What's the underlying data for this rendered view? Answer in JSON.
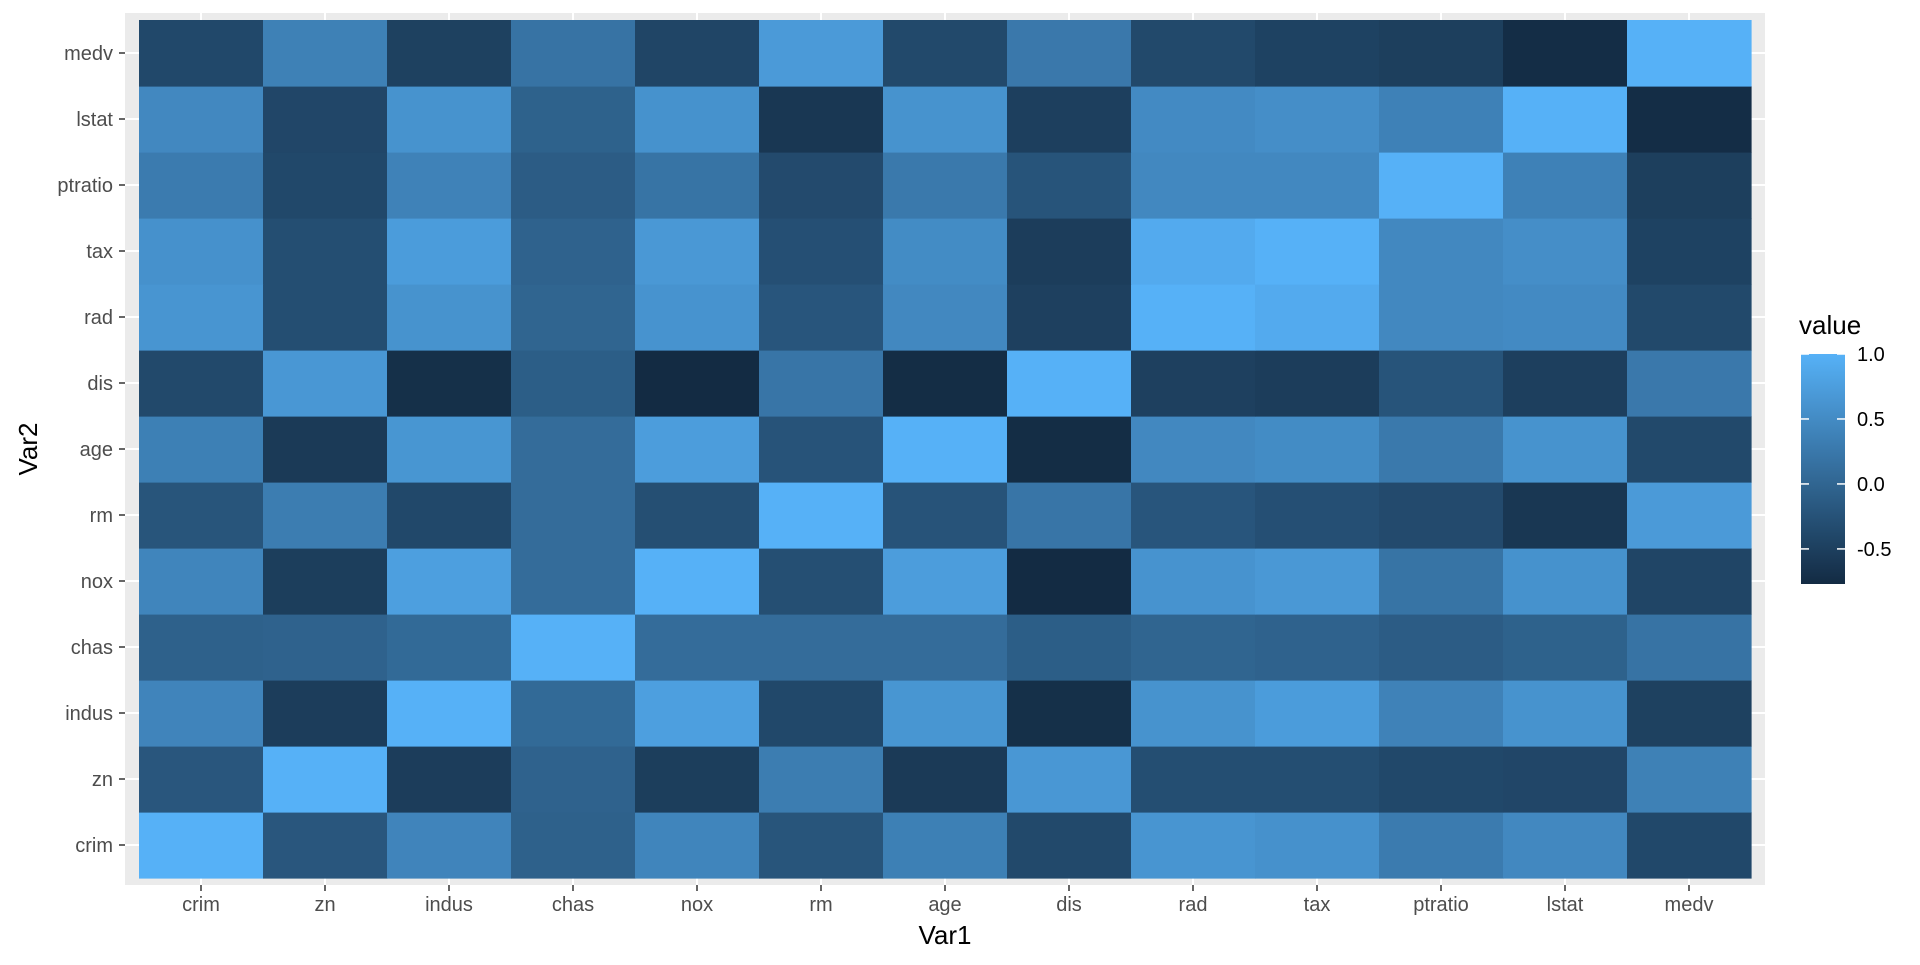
{
  "chart_data": {
    "type": "heatmap",
    "xlabel": "Var1",
    "ylabel": "Var2",
    "x_categories": [
      "crim",
      "zn",
      "indus",
      "chas",
      "nox",
      "rm",
      "age",
      "dis",
      "rad",
      "tax",
      "ptratio",
      "lstat",
      "medv"
    ],
    "y_categories": [
      "crim",
      "zn",
      "indus",
      "chas",
      "nox",
      "rm",
      "age",
      "dis",
      "rad",
      "tax",
      "ptratio",
      "lstat",
      "medv"
    ],
    "values": [
      [
        1.0,
        -0.2,
        0.41,
        -0.06,
        0.42,
        -0.22,
        0.35,
        -0.38,
        0.63,
        0.58,
        0.29,
        0.46,
        -0.39
      ],
      [
        -0.2,
        1.0,
        -0.53,
        -0.04,
        -0.52,
        0.31,
        -0.57,
        0.66,
        -0.31,
        -0.31,
        -0.39,
        -0.41,
        0.36
      ],
      [
        0.41,
        -0.53,
        1.0,
        0.06,
        0.76,
        -0.39,
        0.64,
        -0.71,
        0.6,
        0.72,
        0.38,
        0.6,
        -0.48
      ],
      [
        -0.06,
        -0.04,
        0.06,
        1.0,
        0.09,
        0.09,
        0.09,
        -0.1,
        -0.01,
        -0.04,
        -0.12,
        -0.05,
        0.18
      ],
      [
        0.42,
        -0.52,
        0.76,
        0.09,
        1.0,
        -0.3,
        0.73,
        -0.77,
        0.61,
        0.67,
        0.19,
        0.59,
        -0.43
      ],
      [
        -0.22,
        0.31,
        -0.39,
        0.09,
        -0.3,
        1.0,
        -0.24,
        0.21,
        -0.21,
        -0.29,
        -0.36,
        -0.61,
        0.7
      ],
      [
        0.35,
        -0.57,
        0.64,
        0.09,
        0.73,
        -0.24,
        1.0,
        -0.75,
        0.46,
        0.51,
        0.26,
        0.6,
        -0.38
      ],
      [
        -0.38,
        0.66,
        -0.71,
        -0.1,
        -0.77,
        0.21,
        -0.75,
        1.0,
        -0.49,
        -0.53,
        -0.23,
        -0.5,
        0.25
      ],
      [
        0.63,
        -0.31,
        0.6,
        -0.01,
        0.61,
        -0.21,
        0.46,
        -0.49,
        1.0,
        0.91,
        0.46,
        0.49,
        -0.38
      ],
      [
        0.58,
        -0.31,
        0.72,
        -0.04,
        0.67,
        -0.29,
        0.51,
        -0.53,
        0.91,
        1.0,
        0.46,
        0.54,
        -0.47
      ],
      [
        0.29,
        -0.39,
        0.38,
        -0.12,
        0.19,
        -0.36,
        0.26,
        -0.23,
        0.46,
        0.46,
        1.0,
        0.37,
        -0.51
      ],
      [
        0.46,
        -0.41,
        0.6,
        -0.05,
        0.59,
        -0.61,
        0.6,
        -0.5,
        0.49,
        0.54,
        0.37,
        1.0,
        -0.74
      ],
      [
        -0.39,
        0.36,
        -0.48,
        0.18,
        -0.43,
        0.7,
        -0.38,
        0.25,
        -0.38,
        -0.47,
        -0.51,
        -0.74,
        1.0
      ]
    ],
    "value_range": [
      -0.77,
      1.0
    ],
    "legend": {
      "title": "value",
      "position": "right",
      "ticks": [
        1.0,
        0.5,
        0.0,
        -0.5
      ],
      "tick_labels": [
        "1.0",
        "0.5",
        "0.0",
        "-0.5"
      ],
      "color_low": "#132B43",
      "color_high": "#56B1F7"
    },
    "grid": true,
    "panel_background": "#EBEBEB"
  }
}
